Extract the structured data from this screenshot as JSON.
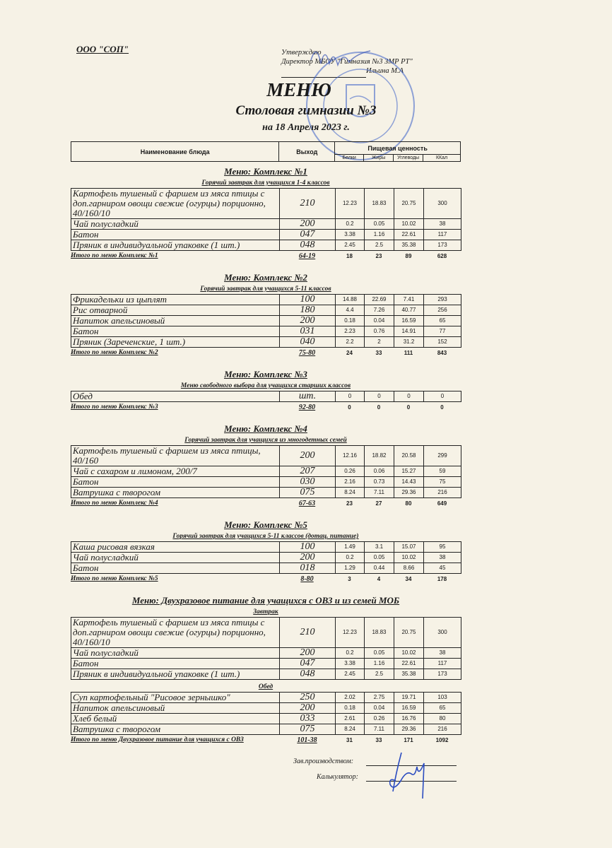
{
  "header": {
    "organization": "ООО \"СОП\"",
    "approve_label": "Утверждаю",
    "approve_position": "Директор МБОУ \"Гимназия №3 ЗМР РТ\"",
    "approve_name": "Ильина М.А",
    "title": "МЕНЮ",
    "subtitle": "Столовая гимназии №3",
    "date": "на 18 Апреля 2023 г.",
    "stamp_text": "МУНИЦИПАЛЬНОЕ БЮДЖЕТНОЕ ОБЩЕОБРАЗОВАТЕЛЬНОЕ УЧРЕЖДЕНИЕ ГИМНАЗИЯ №3 ЗЕЛЕНОДОЛЬСКОГО МУНИЦИПАЛЬНОГО РАЙОНА РЕСПУБЛИКИ ТАТАРСТАН ИНН 1648004751",
    "stamp_color": "#3a5fc8"
  },
  "columns": {
    "name": "Наименование блюда",
    "output": "Выход",
    "nutrition": "Пищевая ценность",
    "protein": "Белки",
    "fat": "Жиры",
    "carbs": "Углеводы",
    "kcal": "ККал"
  },
  "sections": [
    {
      "title": "Меню: Комплекс №1",
      "blocks": [
        {
          "subtitle": "Горячий завтрак для учащихся 1-4 классов",
          "rows": [
            [
              "Картофель тушеный с фаршем из мяса птицы с доп.гарниром овощи свежие (огурцы) порционно, 40/160/10",
              "210",
              "12.23",
              "18.83",
              "20.75",
              "300"
            ],
            [
              "Чай полусладкий",
              "200",
              "0.2",
              "0.05",
              "10.02",
              "38"
            ],
            [
              "Батон",
              "047",
              "3.38",
              "1.16",
              "22.61",
              "117"
            ],
            [
              "Пряник в индивидуальной упаковке (1 шт.)",
              "048",
              "2.45",
              "2.5",
              "35.38",
              "173"
            ]
          ]
        }
      ],
      "total": [
        "Итого по меню Комплекс №1",
        "64-19",
        "18",
        "23",
        "89",
        "628"
      ]
    },
    {
      "title": "Меню: Комплекс №2",
      "blocks": [
        {
          "subtitle": "Горячий завтрак для учащихся 5-11 классов",
          "rows": [
            [
              "Фрикадельки из цыплят",
              "100",
              "14.88",
              "22.69",
              "7.41",
              "293"
            ],
            [
              "Рис отварной",
              "180",
              "4.4",
              "7.26",
              "40.77",
              "256"
            ],
            [
              "Напиток апельсиновый",
              "200",
              "0.18",
              "0.04",
              "16.59",
              "65"
            ],
            [
              "Батон",
              "031",
              "2.23",
              "0.76",
              "14.91",
              "77"
            ],
            [
              "Пряник (Зареченские, 1 шт.)",
              "040",
              "2.2",
              "2",
              "31.2",
              "152"
            ]
          ]
        }
      ],
      "total": [
        "Итого по меню Комплекс №2",
        "75-80",
        "24",
        "33",
        "111",
        "843"
      ]
    },
    {
      "title": "Меню: Комплекс №3",
      "blocks": [
        {
          "subtitle": "Меню свободного выбора для учащихся старших классов",
          "rows": [
            [
              "Обед",
              "шт.",
              "0",
              "0",
              "0",
              "0"
            ]
          ]
        }
      ],
      "total": [
        "Итого по меню Комплекс №3",
        "92-80",
        "0",
        "0",
        "0",
        "0"
      ]
    },
    {
      "title": "Меню: Комплекс №4",
      "blocks": [
        {
          "subtitle": "Горячий завтрак для учащихся из многодетных семей",
          "rows": [
            [
              "Картофель тушеный с фаршем из мяса птицы, 40/160",
              "200",
              "12.16",
              "18.82",
              "20.58",
              "299"
            ],
            [
              "Чай с сахаром и лимоном, 200/7",
              "207",
              "0.26",
              "0.06",
              "15.27",
              "59"
            ],
            [
              "Батон",
              "030",
              "2.16",
              "0.73",
              "14.43",
              "75"
            ],
            [
              "Ватрушка с творогом",
              "075",
              "8.24",
              "7.11",
              "29.36",
              "216"
            ]
          ]
        }
      ],
      "total": [
        "Итого по меню Комплекс №4",
        "67-63",
        "23",
        "27",
        "80",
        "649"
      ]
    },
    {
      "title": "Меню: Комплекс №5",
      "blocks": [
        {
          "subtitle": "Горячий завтрак для учащихся 5-11 классов (дотац. питание)",
          "rows": [
            [
              "Каша рисовая вязкая",
              "100",
              "1.49",
              "3.1",
              "15.07",
              "95"
            ],
            [
              "Чай полусладкий",
              "200",
              "0.2",
              "0.05",
              "10.02",
              "38"
            ],
            [
              "Батон",
              "018",
              "1.29",
              "0.44",
              "8.66",
              "45"
            ]
          ]
        }
      ],
      "total": [
        "Итого по меню Комплекс №5",
        "8-80",
        "3",
        "4",
        "34",
        "178"
      ]
    },
    {
      "title": "Меню: Двухразовое питание для учащихся с ОВЗ и из семей МОБ",
      "blocks": [
        {
          "subtitle": "Завтрак",
          "rows": [
            [
              "Картофель тушеный с фаршем из мяса птицы с доп.гарниром овощи свежие (огурцы) порционно, 40/160/10",
              "210",
              "12.23",
              "18.83",
              "20.75",
              "300"
            ],
            [
              "Чай полусладкий",
              "200",
              "0.2",
              "0.05",
              "10.02",
              "38"
            ],
            [
              "Батон",
              "047",
              "3.38",
              "1.16",
              "22.61",
              "117"
            ],
            [
              "Пряник в индивидуальной упаковке (1 шт.)",
              "048",
              "2.45",
              "2.5",
              "35.38",
              "173"
            ]
          ]
        },
        {
          "subtitle": "Обед",
          "rows": [
            [
              "Суп картофельный \"Рисовое зернышко\"",
              "250",
              "2.02",
              "2.75",
              "19.71",
              "103"
            ],
            [
              "Напиток апельсиновый",
              "200",
              "0.18",
              "0.04",
              "16.59",
              "65"
            ],
            [
              "Хлеб белый",
              "033",
              "2.61",
              "0.26",
              "16.76",
              "80"
            ],
            [
              "Ватрушка с творогом",
              "075",
              "8.24",
              "7.11",
              "29.36",
              "216"
            ]
          ]
        }
      ],
      "total": [
        "Итого по меню Двухразовое питание для учащихся с ОВЗ",
        "101-38",
        "31",
        "33",
        "171",
        "1092"
      ]
    }
  ],
  "footer": {
    "production_label": "Зав.производством:",
    "calculator_label": "Калькулятор:"
  }
}
